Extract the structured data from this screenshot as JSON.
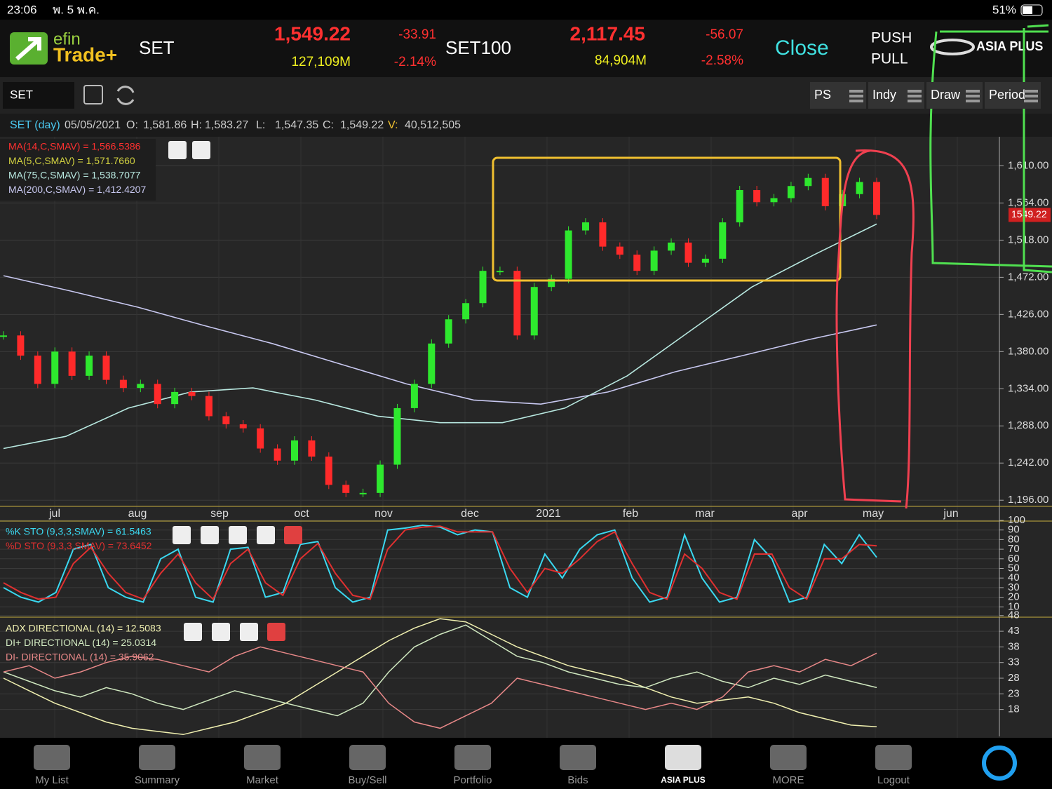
{
  "status_bar": {
    "time": "23:06",
    "date": "พ. 5 พ.ค.",
    "battery": "51%"
  },
  "header": {
    "logo_top": "efin",
    "logo_bottom": "Trade+",
    "market1": "SET",
    "index1": "1,549.22",
    "change1": "-33.91",
    "value1": "127,109M",
    "pct1": "-2.14%",
    "market2": "SET100",
    "index2": "2,117.45",
    "change2": "-56.07",
    "value2": "84,904M",
    "pct2": "-2.58%",
    "status": "Close",
    "push": "PUSH",
    "pull": "PULL",
    "broker": "ASIA PLUS"
  },
  "toolbar": {
    "symbol": "SET",
    "buttons": [
      "PS",
      "Indy",
      "Draw",
      "Period"
    ]
  },
  "quote_line": {
    "symbol": "SET (day)",
    "date": "05/05/2021",
    "o_label": "O:",
    "open": "1,581.86",
    "h_label": "H:",
    "high": "1,583.27",
    "l_label": "L:",
    "low": "1,547.35",
    "c_label": "C:",
    "close": "1,549.22",
    "v_label": "V:",
    "volume": "40,512,505"
  },
  "price_chart": {
    "type": "candlestick",
    "legend": [
      "MA(14,C,SMAV) = 1,566.5386",
      "MA(5,C,SMAV) = 1,571.7660",
      "MA(75,C,SMAV) = 1,538.7077",
      "MA(200,C,SMAV) = 1,412.4207"
    ],
    "x_labels": [
      "jul",
      "aug",
      "sep",
      "oct",
      "nov",
      "dec",
      "2021",
      "feb",
      "mar",
      "apr",
      "may",
      "jun"
    ],
    "ylim": [
      1171,
      1646
    ],
    "yticks": [
      {
        "value": 1610,
        "label": "1,610.00"
      },
      {
        "value": 1564,
        "label": "1,564.00"
      },
      {
        "value": 1518,
        "label": "1,518.00"
      },
      {
        "value": 1472,
        "label": "1,472.00"
      },
      {
        "value": 1426,
        "label": "1,426.00"
      },
      {
        "value": 1380,
        "label": "1,380.00"
      },
      {
        "value": 1334,
        "label": "1,334.00"
      },
      {
        "value": 1288,
        "label": "1,288.00"
      },
      {
        "value": 1242,
        "label": "1,242.00"
      },
      {
        "value": 1196,
        "label": "1,196.00"
      }
    ],
    "last_price": {
      "value": 1549.22,
      "label": "1549.22"
    },
    "up_color": "#2ee82e",
    "down_color": "#ff2a2a",
    "series": [
      {
        "name": "close",
        "values": [
          1400,
          1375,
          1340,
          1380,
          1350,
          1375,
          1345,
          1335,
          1340,
          1315,
          1330,
          1325,
          1300,
          1290,
          1285,
          1260,
          1245,
          1270,
          1250,
          1215,
          1205,
          1205,
          1240,
          1310,
          1340,
          1390,
          1420,
          1440,
          1480,
          1480,
          1400,
          1460,
          1470,
          1530,
          1540,
          1510,
          1500,
          1480,
          1505,
          1515,
          1490,
          1495,
          1540,
          1580,
          1565,
          1570,
          1585,
          1595,
          1560,
          1575,
          1590,
          1549.22
        ]
      },
      {
        "name": "MA200",
        "color": "#c8c8f0",
        "values": [
          1474,
          1455,
          1435,
          1412,
          1390,
          1365,
          1340,
          1320,
          1315,
          1330,
          1355,
          1375,
          1395,
          1413
        ]
      },
      {
        "name": "MA75",
        "color": "#b8e8e0",
        "values": [
          1260,
          1275,
          1310,
          1330,
          1335,
          1320,
          1300,
          1292,
          1292,
          1310,
          1350,
          1405,
          1460,
          1500,
          1538
        ]
      }
    ]
  },
  "stochastic": {
    "legend": [
      "%K STO (9,3,3,SMAV) = 61.5463",
      "%D STO (9,3,3,SMAV) = 73.6452"
    ],
    "ylim": [
      0,
      100
    ],
    "yticks": [
      100,
      90,
      80,
      70,
      60,
      50,
      40,
      30,
      20,
      10
    ],
    "series": [
      {
        "name": "%K",
        "color": "#3ad8f0",
        "values": [
          30,
          20,
          15,
          25,
          70,
          75,
          30,
          20,
          15,
          60,
          70,
          20,
          15,
          70,
          72,
          20,
          25,
          75,
          78,
          30,
          15,
          20,
          90,
          92,
          95,
          93,
          85,
          90,
          88,
          30,
          20,
          65,
          40,
          70,
          85,
          90,
          40,
          15,
          20,
          85,
          40,
          15,
          20,
          80,
          60,
          15,
          20,
          75,
          55,
          85,
          61.5
        ]
      },
      {
        "name": "%D",
        "color": "#e03030",
        "values": [
          35,
          25,
          18,
          20,
          55,
          72,
          45,
          25,
          18,
          45,
          65,
          35,
          18,
          55,
          70,
          35,
          22,
          60,
          76,
          45,
          22,
          18,
          70,
          90,
          93,
          94,
          88,
          88,
          88,
          50,
          25,
          50,
          45,
          60,
          78,
          88,
          55,
          25,
          18,
          65,
          50,
          25,
          18,
          65,
          65,
          30,
          18,
          60,
          60,
          75,
          73.6
        ]
      }
    ]
  },
  "adx": {
    "legend": [
      "ADX DIRECTIONAL (14) = 12.5083",
      "DI+ DIRECTIONAL (14) = 25.0314",
      "DI- DIRECTIONAL (14) = 35.9062"
    ],
    "ylim": [
      9.4,
      47.5
    ],
    "yticks": [
      48,
      43,
      38,
      33,
      28,
      23,
      18
    ],
    "series": [
      {
        "name": "ADX",
        "color": "#f0f0b0",
        "values": [
          28,
          24,
          20,
          17,
          14,
          12,
          11,
          10,
          12,
          14,
          17,
          20,
          25,
          30,
          35,
          40,
          44,
          47,
          46,
          42,
          38,
          35,
          32,
          30,
          28,
          25,
          22,
          20,
          21,
          22,
          20,
          17,
          15,
          13,
          12.5
        ]
      },
      {
        "name": "DI+",
        "color": "#d0e8c0",
        "values": [
          30,
          27,
          24,
          22,
          25,
          23,
          20,
          18,
          21,
          24,
          22,
          20,
          18,
          16,
          20,
          30,
          38,
          42,
          45,
          40,
          35,
          33,
          30,
          28,
          26,
          25,
          28,
          30,
          27,
          25,
          28,
          26,
          29,
          27,
          25
        ]
      },
      {
        "name": "DI-",
        "color": "#e88888",
        "values": [
          30,
          32,
          28,
          30,
          33,
          35,
          34,
          32,
          30,
          35,
          38,
          36,
          34,
          32,
          30,
          20,
          14,
          12,
          16,
          20,
          28,
          26,
          24,
          22,
          20,
          18,
          20,
          18,
          22,
          30,
          32,
          30,
          34,
          32,
          36
        ]
      }
    ]
  },
  "nav": [
    "My List",
    "Summary",
    "Market",
    "Buy/Sell",
    "Portfolio",
    "Bids",
    "ASIA PLUS",
    "MORE",
    "Logout"
  ]
}
